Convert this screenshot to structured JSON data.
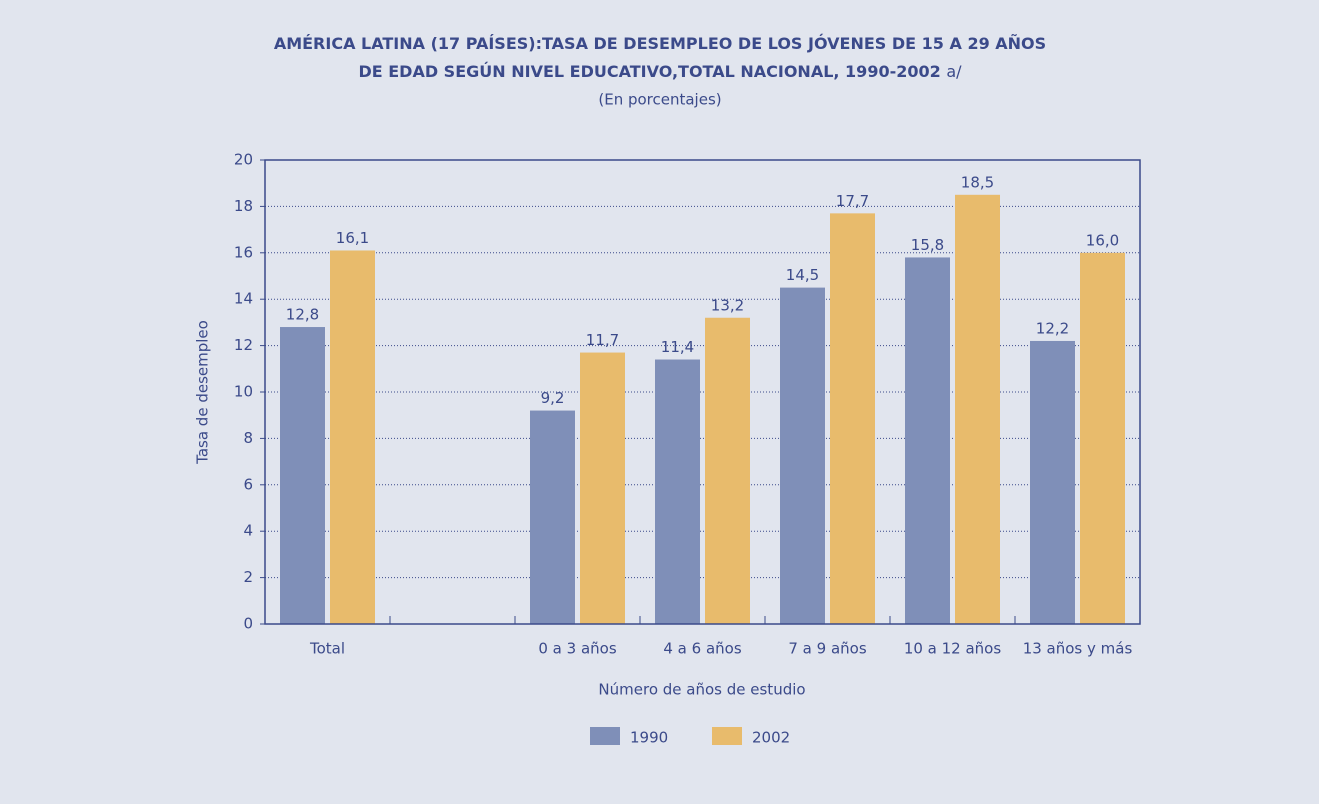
{
  "chart_data": {
    "type": "bar",
    "title": [
      "AMÉRICA LATINA (17 PAÍSES):TASA DE DESEMPLEO DE LOS JÓVENES DE 15 A 29 AÑOS",
      "DE EDAD SEGÚN NIVEL EDUCATIVO,TOTAL NACIONAL, 1990-2002"
    ],
    "title_note": "a/",
    "subtitle": "(En porcentajes)",
    "xlabel": "Número de años de estudio",
    "ylabel": "Tasa de desempleo",
    "categories": [
      "Total",
      null,
      "0 a 3 años",
      "4 a 6 años",
      "7 a 9 años",
      "10 a 12 años",
      "13 años y más"
    ],
    "series": [
      {
        "name": "1990",
        "color": "#7f8fb8",
        "values": [
          12.8,
          null,
          9.2,
          11.4,
          14.5,
          15.8,
          12.2
        ],
        "value_labels": [
          "12,8",
          null,
          "9,2",
          "11,4",
          "14,5",
          "15,8",
          "12,2"
        ]
      },
      {
        "name": "2002",
        "color": "#e8bb6c",
        "values": [
          16.1,
          null,
          11.7,
          13.2,
          17.7,
          18.5,
          16.0
        ],
        "value_labels": [
          "16,1",
          null,
          "11,7",
          "13,2",
          "17,7",
          "18,5",
          "16,0"
        ]
      }
    ],
    "ylim": [
      0,
      20
    ],
    "yticks": [
      0,
      2,
      4,
      6,
      8,
      10,
      12,
      14,
      16,
      18,
      20
    ],
    "grid": true
  }
}
